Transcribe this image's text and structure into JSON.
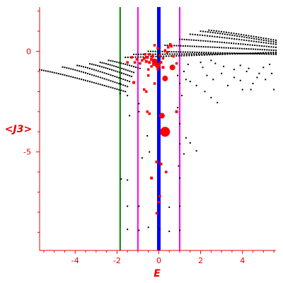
{
  "chart_data": {
    "type": "scatter",
    "xlabel": "E",
    "ylabel": "<J3>",
    "xlim": [
      -5.7,
      5.6
    ],
    "ylim": [
      -9.9,
      2.2
    ],
    "xticks": [
      -4,
      -2,
      0,
      2,
      4
    ],
    "yticks": [
      0,
      -5
    ],
    "grid": false,
    "colors": {
      "axis": "#ee0000",
      "black_points": "#000000",
      "red_points": "#ff0000",
      "line_green": "#008000",
      "line_magenta": "#ff00ff",
      "line_blue": "#0000ff"
    },
    "vertical_lines": [
      {
        "x": -1.85,
        "color": "#008000",
        "width": "thin"
      },
      {
        "x": -1.0,
        "color": "#ff00ff",
        "width": "thin"
      },
      {
        "x": 0.0,
        "color": "#0000ff",
        "width": "thick"
      },
      {
        "x": 1.0,
        "color": "#ff00ff",
        "width": "thin"
      }
    ],
    "series": [
      {
        "color": "#000000",
        "description": "band structure dots",
        "bands": [
          {
            "x_start": -5.7,
            "x_end": -1.6,
            "y_start": -0.92,
            "y_end": -2.0,
            "count": 42
          },
          {
            "x_start": -4.6,
            "x_end": -1.5,
            "y_start": -0.78,
            "y_end": -1.75,
            "count": 32
          },
          {
            "x_start": -3.9,
            "x_end": -1.4,
            "y_start": -0.7,
            "y_end": -1.5,
            "count": 26
          },
          {
            "x_start": -3.3,
            "x_end": -1.3,
            "y_start": -0.62,
            "y_end": -1.25,
            "count": 22
          },
          {
            "x_start": -2.8,
            "x_end": -1.2,
            "y_start": -0.55,
            "y_end": -1.05,
            "count": 18
          },
          {
            "x_start": -2.4,
            "x_end": -0.9,
            "y_start": -0.45,
            "y_end": -0.85,
            "count": 16
          },
          {
            "x_start": -1.6,
            "x_end": 5.6,
            "y_start": -0.3,
            "y_end": -0.05,
            "count": 60
          },
          {
            "x_start": -1.2,
            "x_end": 5.6,
            "y_start": -0.15,
            "y_end": -0.1,
            "count": 60
          },
          {
            "x_start": -0.5,
            "x_end": 5.6,
            "y_start": 0.0,
            "y_end": -0.15,
            "count": 56
          },
          {
            "x_start": 0.3,
            "x_end": 5.6,
            "y_start": 0.3,
            "y_end": 0.05,
            "count": 50
          },
          {
            "x_start": 1.0,
            "x_end": 5.6,
            "y_start": 0.6,
            "y_end": 0.2,
            "count": 42
          },
          {
            "x_start": 1.5,
            "x_end": 5.6,
            "y_start": 0.85,
            "y_end": 0.35,
            "count": 36
          },
          {
            "x_start": 2.0,
            "x_end": 5.6,
            "y_start": 1.0,
            "y_end": 0.45,
            "count": 32
          },
          {
            "x_start": 2.4,
            "x_end": 5.6,
            "y_start": 1.05,
            "y_end": 0.55,
            "count": 28
          }
        ],
        "points": [
          [
            -1.85,
            -1.6
          ],
          [
            -1.85,
            -2.1
          ],
          [
            -1.8,
            -6.35
          ],
          [
            -1.5,
            -6.4
          ],
          [
            -1.5,
            -8.85
          ],
          [
            -1.5,
            -7.7
          ],
          [
            -1.4,
            -3.2
          ],
          [
            -1.5,
            -2.2
          ],
          [
            -0.95,
            -2.6
          ],
          [
            -0.95,
            -7.7
          ],
          [
            -0.95,
            -8.9
          ],
          [
            -0.5,
            -8.75
          ],
          [
            0.05,
            -8.85
          ],
          [
            0.5,
            -8.95
          ],
          [
            0.5,
            -7.75
          ],
          [
            1.0,
            -8.9
          ],
          [
            1.0,
            -7.7
          ],
          [
            1.0,
            -6.3
          ],
          [
            1.3,
            -4.3
          ],
          [
            1.5,
            -4.55
          ],
          [
            1.8,
            -4.95
          ],
          [
            1.3,
            -1.4
          ],
          [
            1.5,
            -1.5
          ],
          [
            1.8,
            -1.7
          ],
          [
            2.2,
            -2.0
          ],
          [
            2.5,
            -2.3
          ],
          [
            2.8,
            -2.55
          ],
          [
            2.1,
            -0.8
          ],
          [
            2.3,
            -1.2
          ],
          [
            2.6,
            -1.4
          ],
          [
            3.0,
            -1.1
          ],
          [
            3.3,
            -1.7
          ],
          [
            3.6,
            -1.3
          ],
          [
            3.9,
            -1.45
          ],
          [
            4.2,
            -1.0
          ],
          [
            4.5,
            -1.6
          ],
          [
            4.8,
            -1.1
          ],
          [
            5.1,
            -1.4
          ],
          [
            5.4,
            -1.1
          ],
          [
            5.5,
            -1.9
          ],
          [
            4.0,
            -1.9
          ],
          [
            4.4,
            -1.9
          ],
          [
            4.7,
            -1.3
          ],
          [
            3.6,
            -0.9
          ],
          [
            3.1,
            -0.75
          ],
          [
            2.7,
            -0.6
          ],
          [
            3.9,
            -0.7
          ],
          [
            4.3,
            -0.85
          ],
          [
            5.0,
            -0.8
          ],
          [
            5.3,
            -0.65
          ],
          [
            2.5,
            -0.45
          ],
          [
            2.0,
            -0.55
          ],
          [
            1.4,
            -0.65
          ],
          [
            1.2,
            -1.0
          ],
          [
            0.9,
            -1.2
          ],
          [
            1.0,
            -1.6
          ],
          [
            1.1,
            -2.2
          ],
          [
            0.9,
            -2.8
          ],
          [
            1.0,
            -3.6
          ],
          [
            1.0,
            -4.6
          ],
          [
            0.95,
            -5.7
          ],
          [
            1.2,
            -5.1
          ],
          [
            -0.95,
            -3.0
          ],
          [
            -0.8,
            -5.3
          ],
          [
            -0.55,
            -4.2
          ],
          [
            -0.45,
            -5.0
          ]
        ]
      },
      {
        "color": "#ff0000",
        "description": "expectation values",
        "points": [
          [
            0.3,
            -4.0,
            7
          ],
          [
            0.3,
            -1.35,
            4
          ],
          [
            0.15,
            -3.2,
            4
          ],
          [
            0.65,
            -0.8,
            4
          ],
          [
            0.2,
            -0.8,
            3
          ],
          [
            0.1,
            -0.55,
            3
          ],
          [
            -0.05,
            -0.7,
            4
          ],
          [
            -0.2,
            -0.5,
            4
          ],
          [
            -0.25,
            -0.65,
            3
          ],
          [
            -0.35,
            -0.4,
            3
          ],
          [
            -0.45,
            -0.55,
            3
          ],
          [
            -0.55,
            -0.3,
            3
          ],
          [
            -0.6,
            -0.5,
            3
          ],
          [
            -0.7,
            -0.35,
            3
          ],
          [
            -0.8,
            -0.45,
            2.5
          ],
          [
            -0.9,
            -0.6,
            2.5
          ],
          [
            -1.05,
            -0.4,
            2.5
          ],
          [
            -1.15,
            -0.55,
            2.5
          ],
          [
            -1.3,
            -0.3,
            2.5
          ],
          [
            -0.3,
            -0.25,
            3
          ],
          [
            0.05,
            -0.2,
            2.5
          ],
          [
            0.2,
            -0.35,
            2.5
          ],
          [
            0.3,
            0.05,
            2.5
          ],
          [
            0.45,
            0.2,
            2.5
          ],
          [
            0.55,
            0.35,
            2.5
          ],
          [
            0.6,
            0.25,
            2.5
          ],
          [
            0.4,
            -0.05,
            2.5
          ],
          [
            -0.2,
            0.3,
            2.5
          ],
          [
            -0.05,
            0.15,
            2.5
          ],
          [
            -0.45,
            -0.15,
            2.5
          ],
          [
            -0.65,
            -0.15,
            2.5
          ],
          [
            0.7,
            -0.25,
            2.5
          ],
          [
            0.85,
            -0.6,
            2.5
          ],
          [
            -0.5,
            -0.9,
            2.5
          ],
          [
            -0.35,
            -0.75,
            2.5
          ],
          [
            -0.05,
            -0.9,
            2.5
          ],
          [
            -1.5,
            -0.55,
            2.5
          ],
          [
            -0.7,
            -1.9,
            2.5
          ],
          [
            -0.6,
            -2.0,
            2.5
          ],
          [
            -1.2,
            -1.55,
            3
          ],
          [
            -0.5,
            -1.2,
            2.5
          ],
          [
            -0.2,
            -1.6,
            2.5
          ],
          [
            -0.55,
            -3.0,
            2.5
          ],
          [
            -0.45,
            -3.1,
            2.5
          ],
          [
            0.85,
            -3.0,
            3
          ],
          [
            -0.1,
            -5.5,
            3
          ],
          [
            0.1,
            -5.6,
            3
          ],
          [
            -0.35,
            -6.3,
            3
          ],
          [
            0.0,
            -7.5,
            2.5
          ],
          [
            -0.1,
            -8.05,
            2.5
          ],
          [
            0.35,
            -6.0,
            2.5
          ],
          [
            0.05,
            -7.2,
            2.5
          ]
        ]
      }
    ]
  }
}
